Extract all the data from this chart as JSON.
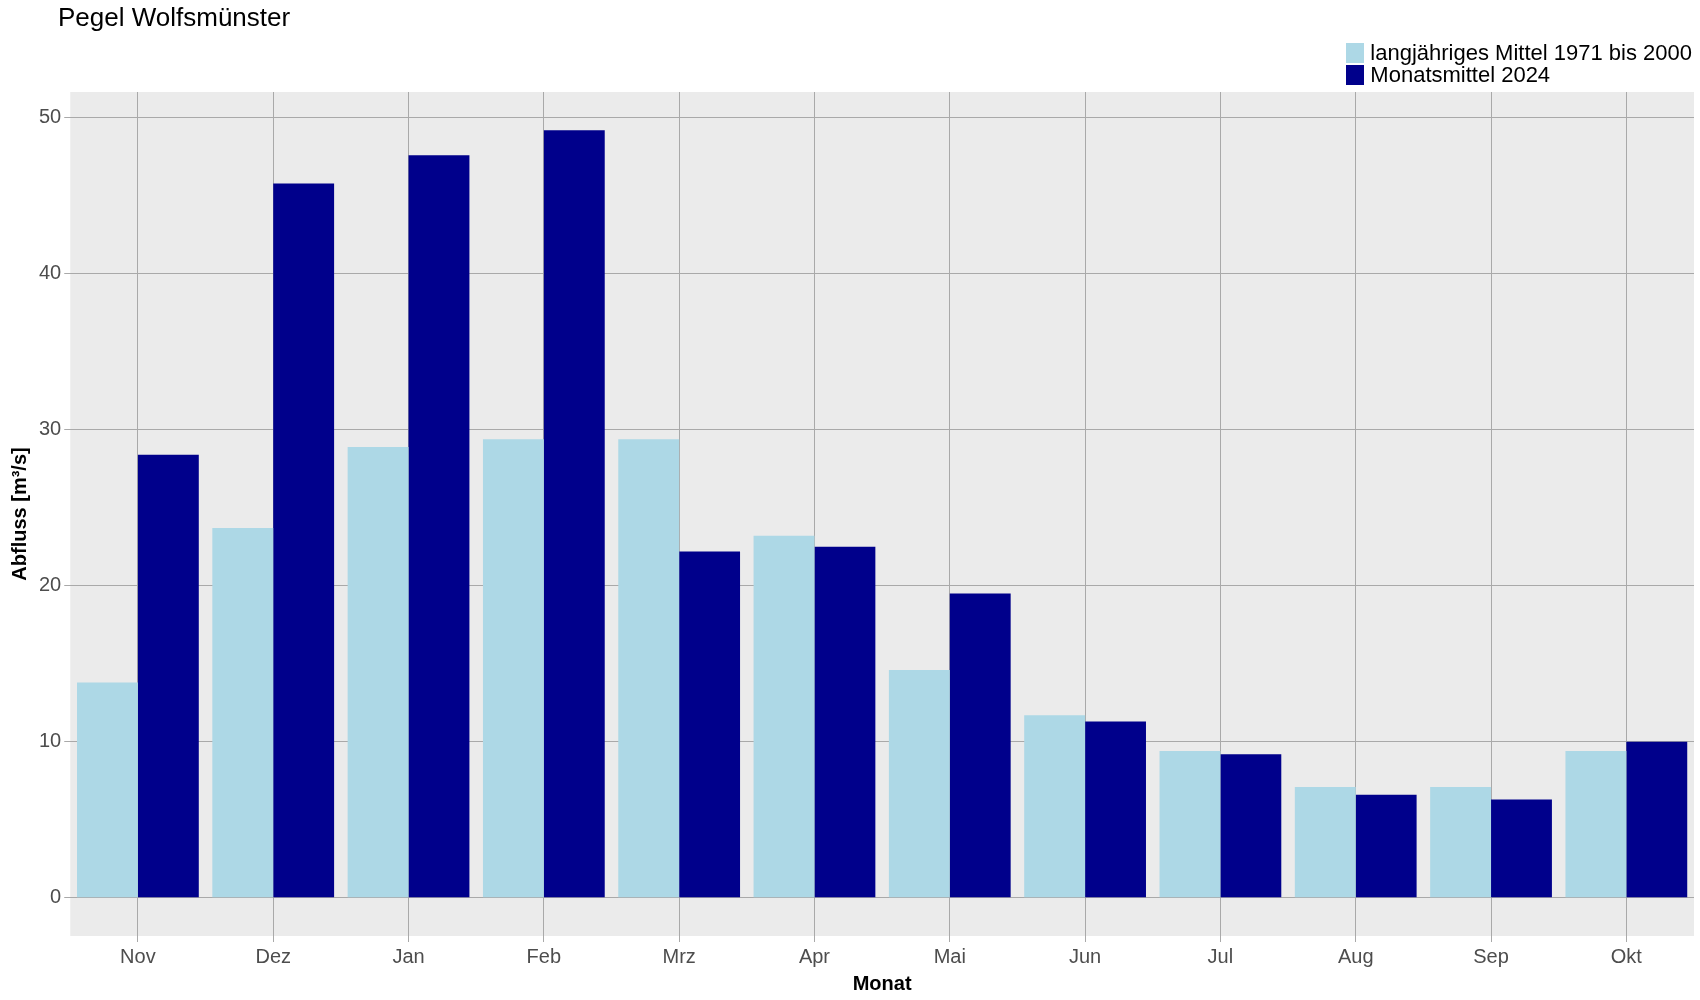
{
  "chart_data": {
    "type": "bar",
    "title": "Pegel Wolfsmünster",
    "xlabel": "Monat",
    "ylabel": "Abfluss [m³/s]",
    "categories": [
      "Nov",
      "Dez",
      "Jan",
      "Feb",
      "Mrz",
      "Apr",
      "Mai",
      "Jun",
      "Jul",
      "Aug",
      "Sep",
      "Okt"
    ],
    "series": [
      {
        "name": "langjähriges Mittel 1971 bis 2000",
        "color": "#add8e6",
        "values": [
          13.8,
          23.7,
          28.9,
          29.4,
          29.4,
          23.2,
          14.6,
          11.7,
          9.4,
          7.1,
          7.1,
          9.4
        ]
      },
      {
        "name": "Monatsmittel 2024",
        "color": "#00008b",
        "values": [
          28.4,
          45.8,
          47.6,
          49.2,
          22.2,
          22.5,
          19.5,
          11.3,
          9.2,
          6.6,
          6.3,
          10.0
        ]
      }
    ],
    "ylim": [
      -2.46,
      51.66
    ],
    "yticks": [
      0,
      10,
      20,
      30,
      40,
      50
    ],
    "grid": true,
    "legend": "top right"
  }
}
